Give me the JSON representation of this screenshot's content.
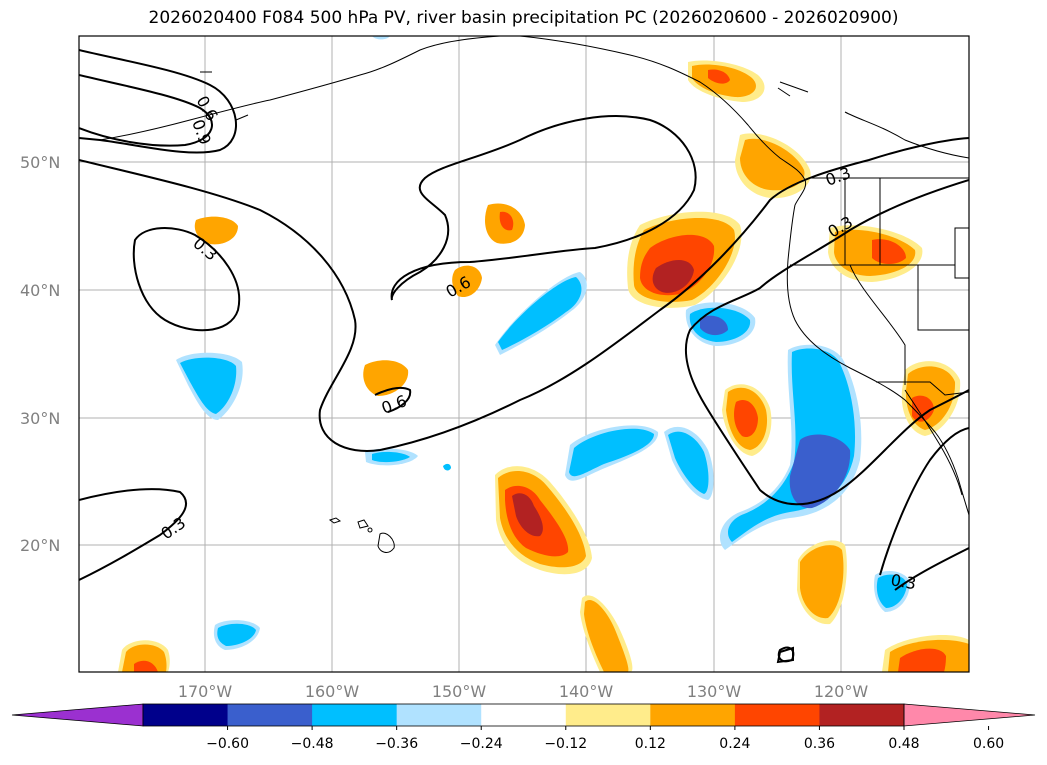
{
  "title": "2026020400 F084 500 hPa PV, river basin precipitation PC (2026020600 - 2026020900)",
  "lon_labels": [
    "170°W",
    "160°W",
    "150°W",
    "140°W",
    "130°W",
    "120°W"
  ],
  "lat_labels": [
    "50°N",
    "40°N",
    "30°N",
    "20°N"
  ],
  "contour_labels": [
    "0.6",
    "0.9",
    "0.3",
    "0.6",
    "0.6",
    "0.3",
    "0.3",
    "0.3",
    "0.3"
  ],
  "colorbar": {
    "ticks": [
      "−0.60",
      "−0.48",
      "−0.36",
      "−0.24",
      "−0.12",
      "0.12",
      "0.24",
      "0.36",
      "0.48",
      "0.60"
    ],
    "colors": [
      "#9b30d0",
      "#00008b",
      "#3a5fcd",
      "#00bfff",
      "#b0e2ff",
      "#ffffff",
      "#ffec8b",
      "#ffa500",
      "#ff4500",
      "#b22222",
      "#ff88aa"
    ]
  }
}
